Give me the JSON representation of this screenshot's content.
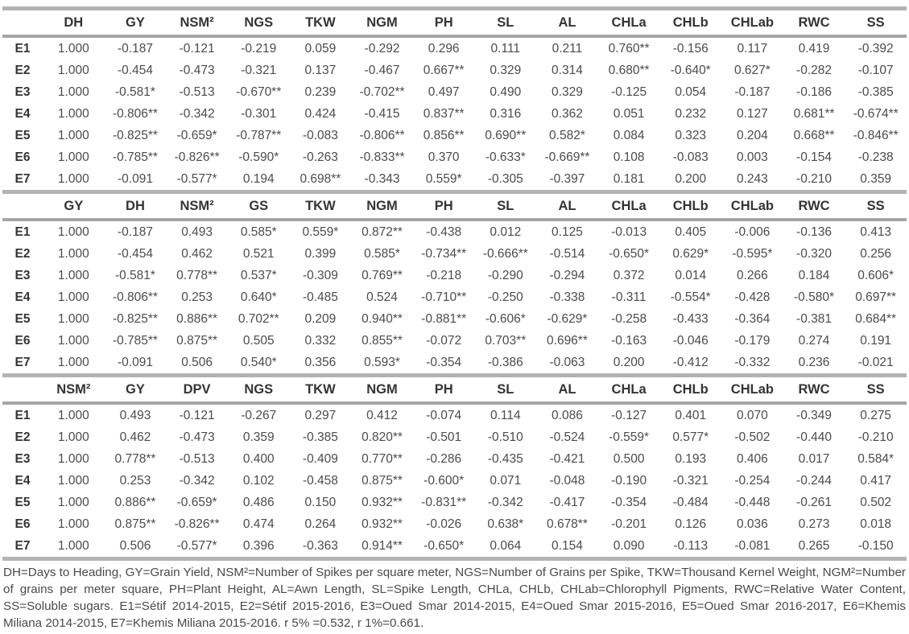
{
  "colors": {
    "rule_gray": "#b3b3b3",
    "header_rule_gray": "#a5a5a5",
    "header_text": "#343434",
    "value_text": "#4b4b4b"
  },
  "table": {
    "sections": [
      {
        "headers": [
          "",
          "DH",
          "GY",
          "NSM²",
          "NGS",
          "TKW",
          "NGM",
          "PH",
          "SL",
          "AL",
          "CHLa",
          "CHLb",
          "CHLab",
          "RWC",
          "SS"
        ],
        "rows": [
          {
            "label": "E1",
            "values": [
              "1.000",
              "-0.187",
              "-0.121",
              "-0.219",
              "0.059",
              "-0.292",
              "0.296",
              "0.111",
              "0.211",
              "0.760**",
              "-0.156",
              "0.117",
              "0.419",
              "-0.392"
            ]
          },
          {
            "label": "E2",
            "values": [
              "1.000",
              "-0.454",
              "-0.473",
              "-0.321",
              "0.137",
              "-0.467",
              "0.667**",
              "0.329",
              "0.314",
              "0.680**",
              "-0.640*",
              "0.627*",
              "-0.282",
              "-0.107"
            ]
          },
          {
            "label": "E3",
            "values": [
              "1.000",
              "-0.581*",
              "-0.513",
              "-0.670**",
              "0.239",
              "-0.702**",
              "0.497",
              "0.490",
              "0.329",
              "-0.125",
              "0.054",
              "-0.187",
              "-0.186",
              "-0.385"
            ]
          },
          {
            "label": "E4",
            "values": [
              "1.000",
              "-0.806**",
              "-0.342",
              "-0.301",
              "0.424",
              "-0.415",
              "0.837**",
              "0.316",
              "0.362",
              "0.051",
              "0.232",
              "0.127",
              "0.681**",
              "-0.674**"
            ]
          },
          {
            "label": "E5",
            "values": [
              "1.000",
              "-0.825**",
              "-0.659*",
              "-0.787**",
              "-0.083",
              "-0.806**",
              "0.856**",
              "0.690**",
              "0.582*",
              "0.084",
              "0.323",
              "0.204",
              "0.668**",
              "-0.846**"
            ]
          },
          {
            "label": "E6",
            "values": [
              "1.000",
              "-0.785**",
              "-0.826**",
              "-0.590*",
              "-0.263",
              "-0.833**",
              "0.370",
              "-0.633*",
              "-0.669**",
              "0.108",
              "-0.083",
              "0.003",
              "-0.154",
              "-0.238"
            ]
          },
          {
            "label": "E7",
            "values": [
              "1.000",
              "-0.091",
              "-0.577*",
              "0.194",
              "0.698**",
              "-0.343",
              "0.559*",
              "-0.305",
              "-0.397",
              "0.181",
              "0.200",
              "0.243",
              "-0.210",
              "0.359"
            ]
          }
        ]
      },
      {
        "headers": [
          "",
          "GY",
          "DH",
          "NSM²",
          "GS",
          "TKW",
          "NGM",
          "PH",
          "SL",
          "AL",
          "CHLa",
          "CHLb",
          "CHLab",
          "RWC",
          "SS"
        ],
        "rows": [
          {
            "label": "E1",
            "values": [
              "1.000",
              "-0.187",
              "0.493",
              "0.585*",
              "0.559*",
              "0.872**",
              "-0.438",
              "0.012",
              "0.125",
              "-0.013",
              "0.405",
              "-0.006",
              "-0.136",
              "0.413"
            ]
          },
          {
            "label": "E2",
            "values": [
              "1.000",
              "-0.454",
              "0.462",
              "0.521",
              "0.399",
              "0.585*",
              "-0.734**",
              "-0.666**",
              "-0.514",
              "-0.650*",
              "0.629*",
              "-0.595*",
              "-0.320",
              "0.256"
            ]
          },
          {
            "label": "E3",
            "values": [
              "1.000",
              "-0.581*",
              "0.778**",
              "0.537*",
              "-0.309",
              "0.769**",
              "-0.218",
              "-0.290",
              "-0.294",
              "0.372",
              "0.014",
              "0.266",
              "0.184",
              "0.606*"
            ]
          },
          {
            "label": "E4",
            "values": [
              "1.000",
              "-0.806**",
              "0.253",
              "0.640*",
              "-0.485",
              "0.524",
              "-0.710**",
              "-0.250",
              "-0.338",
              "-0.311",
              "-0.554*",
              "-0.428",
              "-0.580*",
              "0.697**"
            ]
          },
          {
            "label": "E5",
            "values": [
              "1.000",
              "-0.825**",
              "0.886**",
              "0.702**",
              "0.209",
              "0.940**",
              "-0.881**",
              "-0.606*",
              "-0.629*",
              "-0.258",
              "-0.433",
              "-0.364",
              "-0.381",
              "0.684**"
            ]
          },
          {
            "label": "E6",
            "values": [
              "1.000",
              "-0.785**",
              "0.875**",
              "0.505",
              "0.332",
              "0.855**",
              "-0.072",
              "0.703**",
              "0.696**",
              "-0.163",
              "-0.046",
              "-0.179",
              "0.274",
              "0.191"
            ]
          },
          {
            "label": "E7",
            "values": [
              "1.000",
              "-0.091",
              "0.506",
              "0.540*",
              "0.356",
              "0.593*",
              "-0.354",
              "-0.386",
              "-0.063",
              "0.200",
              "-0.412",
              "-0.332",
              "0.236",
              "-0.021"
            ]
          }
        ]
      },
      {
        "headers": [
          "",
          "NSM²",
          "GY",
          "DPV",
          "NGS",
          "TKW",
          "NGM",
          "PH",
          "SL",
          "AL",
          "CHLa",
          "CHLb",
          "CHLab",
          "RWC",
          "SS"
        ],
        "rows": [
          {
            "label": "E1",
            "values": [
              "1.000",
              "0.493",
              "-0.121",
              "-0.267",
              "0.297",
              "0.412",
              "-0.074",
              "0.114",
              "0.086",
              "-0.127",
              "0.401",
              "0.070",
              "-0.349",
              "0.275"
            ]
          },
          {
            "label": "E2",
            "values": [
              "1.000",
              "0.462",
              "-0.473",
              "0.359",
              "-0.385",
              "0.820**",
              "-0.501",
              "-0.510",
              "-0.524",
              "-0.559*",
              "0.577*",
              "-0.502",
              "-0.440",
              "-0.210"
            ]
          },
          {
            "label": "E3",
            "values": [
              "1.000",
              "0.778**",
              "-0.513",
              "0.400",
              "-0.409",
              "0.770**",
              "-0.286",
              "-0.435",
              "-0.421",
              "0.500",
              "0.193",
              "0.406",
              "0.017",
              "0.584*"
            ]
          },
          {
            "label": "E4",
            "values": [
              "1.000",
              "0.253",
              "-0.342",
              "0.102",
              "-0.458",
              "0.875**",
              "-0.600*",
              "0.071",
              "-0.048",
              "-0.190",
              "-0.321",
              "-0.254",
              "-0.244",
              "0.417"
            ]
          },
          {
            "label": "E5",
            "values": [
              "1.000",
              "0.886**",
              "-0.659*",
              "0.486",
              "0.150",
              "0.932**",
              "-0.831**",
              "-0.342",
              "-0.417",
              "-0.354",
              "-0.484",
              "-0.448",
              "-0.261",
              "0.502"
            ]
          },
          {
            "label": "E6",
            "values": [
              "1.000",
              "0.875**",
              "-0.826**",
              "0.474",
              "0.264",
              "0.932**",
              "-0.026",
              "0.638*",
              "0.678**",
              "-0.201",
              "0.126",
              "0.036",
              "0.273",
              "0.018"
            ]
          },
          {
            "label": "E7",
            "values": [
              "1.000",
              "0.506",
              "-0.577*",
              "0.396",
              "-0.363",
              "0.914**",
              "-0.650*",
              "0.064",
              "0.154",
              "0.090",
              "-0.113",
              "-0.081",
              "0.265",
              "-0.150"
            ]
          }
        ]
      }
    ],
    "footnote": "DH=Days to Heading, GY=Grain Yield, NSM²=Number of Spikes per square meter, NGS=Number of Grains per Spike, TKW=Thousand Kernel Weight, NGM²=Number of grains per meter square, PH=Plant Height, AL=Awn Length, SL=Spike Length, CHLa, CHLb, CHLab=Chlorophyll Pigments, RWC=Relative Water Content, SS=Soluble sugars. E1=Sétif 2014-2015, E2=Sétif 2015-2016, E3=Oued Smar 2014-2015, E4=Oued Smar 2015-2016, E5=Oued Smar 2016-2017, E6=Khemis Miliana 2014-2015, E7=Khemis Miliana 2015-2016. r 5% =0.532, r 1%=0.661."
  }
}
